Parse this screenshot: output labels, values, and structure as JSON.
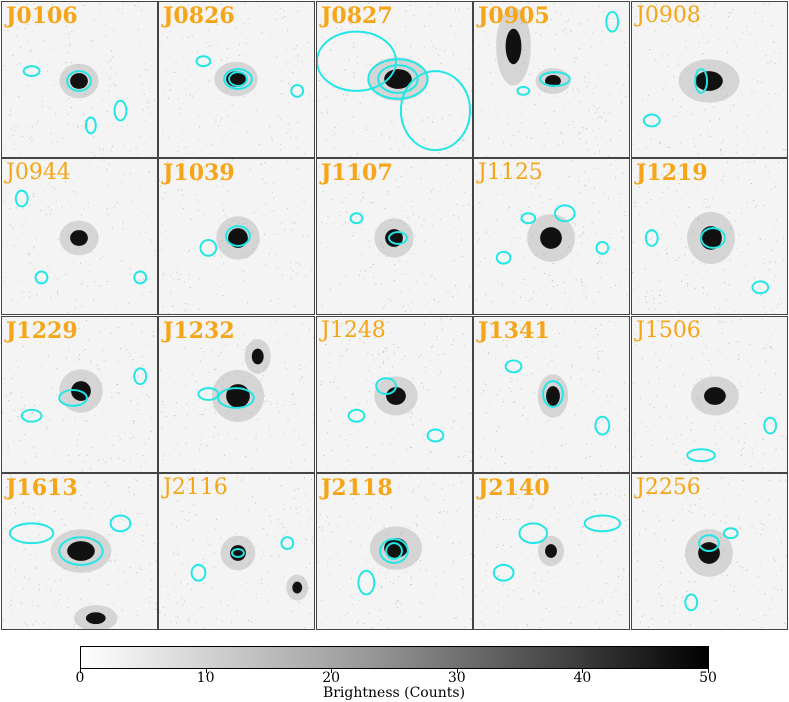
{
  "panels": [
    {
      "label": "J0106",
      "bold": true
    },
    {
      "label": "J0826",
      "bold": true
    },
    {
      "label": "J0827",
      "bold": true
    },
    {
      "label": "J0905",
      "bold": true
    },
    {
      "label": "J0908",
      "bold": false
    },
    {
      "label": "J0944",
      "bold": false
    },
    {
      "label": "J1039",
      "bold": true
    },
    {
      "label": "J1107",
      "bold": true
    },
    {
      "label": "J1125",
      "bold": false
    },
    {
      "label": "J1219",
      "bold": true
    },
    {
      "label": "J1229",
      "bold": true
    },
    {
      "label": "J1232",
      "bold": true
    },
    {
      "label": "J1248",
      "bold": false
    },
    {
      "label": "J1341",
      "bold": true
    },
    {
      "label": "J1506",
      "bold": false
    },
    {
      "label": "J1613",
      "bold": true
    },
    {
      "label": "J2116",
      "bold": false
    },
    {
      "label": "J2118",
      "bold": true
    },
    {
      "label": "J2140",
      "bold": true
    },
    {
      "label": "J2256",
      "bold": false
    }
  ],
  "colorbar": {
    "label": "Brightness (Counts)",
    "ticks": [
      "0",
      "10",
      "20",
      "30",
      "40",
      "50"
    ],
    "min": 0,
    "max": 50
  },
  "colors": {
    "label": "#f5a516",
    "contour": "#22e6e6",
    "galaxy": "#111111"
  }
}
